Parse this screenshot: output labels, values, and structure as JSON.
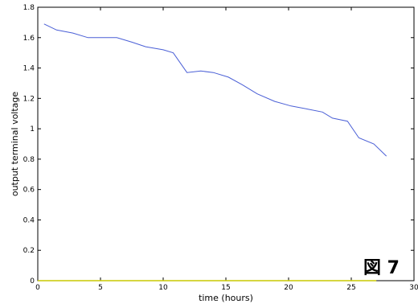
{
  "chart_data": {
    "type": "line",
    "xlabel": "time (hours)",
    "ylabel": "output terminal voltage",
    "xlim": [
      0,
      30
    ],
    "ylim": [
      0,
      1.8
    ],
    "xticks": [
      0,
      5,
      10,
      15,
      20,
      25,
      30
    ],
    "yticks": [
      0,
      0.2,
      0.4,
      0.6,
      0.8,
      1,
      1.2,
      1.4,
      1.6,
      1.8
    ],
    "xtick_labels": [
      "0",
      "5",
      "10",
      "15",
      "20",
      "25",
      "30"
    ],
    "ytick_labels": [
      "0",
      "0.2",
      "0.4",
      "0.6",
      "0.8",
      "1",
      "1.2",
      "1.4",
      "1.6",
      "1.8"
    ],
    "grid": false,
    "annotation": "図 7",
    "series": [
      {
        "color": "#4a5fd6",
        "x": [
          0.5,
          1.5,
          2.8,
          4,
          5,
          6.3,
          7.5,
          8.6,
          10,
          10.8,
          11.9,
          13,
          14,
          15.2,
          16.3,
          17.5,
          18.9,
          20.2,
          21.5,
          22.7,
          23.5,
          24.7,
          25.6,
          26.8,
          27.8
        ],
        "y": [
          1.69,
          1.65,
          1.63,
          1.6,
          1.6,
          1.6,
          1.57,
          1.54,
          1.52,
          1.5,
          1.37,
          1.38,
          1.37,
          1.34,
          1.29,
          1.23,
          1.18,
          1.15,
          1.13,
          1.11,
          1.07,
          1.05,
          0.94,
          0.9,
          0.82
        ]
      },
      {
        "color": "#c8c800",
        "x": [
          0,
          27
        ],
        "y": [
          0,
          0
        ]
      }
    ]
  }
}
